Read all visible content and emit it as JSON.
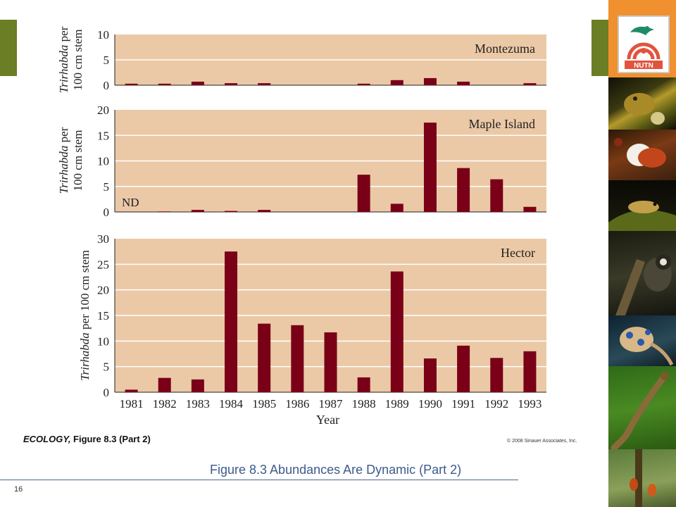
{
  "slide": {
    "book_label_bold": "ECOLOGY,",
    "book_label_rest": " Figure 8.3 (Part 2)",
    "copyright": "© 2008 Sinauer Associates, Inc.",
    "caption": "Figure 8.3  Abundances Are Dynamic (Part 2)",
    "page_number": "16",
    "logo_text": "NUTN",
    "colors": {
      "panel_bg": "#ebc9a6",
      "bar": "#7a0018",
      "caption": "#3d5a8a",
      "tab": "#6b7d25",
      "logo_bg": "#f0902e"
    }
  },
  "sidebar_photos": [
    "frog-photo",
    "frog-vocal-sac-photo",
    "frog-on-leaf-photo",
    "marmoset-photo",
    "octopus-photo",
    "salamander-photo",
    "insects-photo"
  ],
  "chart_data": [
    {
      "type": "bar",
      "title": "Montezuma",
      "ylabel": [
        "Trirhabda per",
        "100 cm stem"
      ],
      "ylim": [
        0,
        10
      ],
      "yticks": [
        0,
        5,
        10
      ],
      "categories": [
        "1981",
        "1982",
        "1983",
        "1984",
        "1985",
        "1986",
        "1987",
        "1988",
        "1989",
        "1990",
        "1991",
        "1992",
        "1993"
      ],
      "values": [
        0.3,
        0.3,
        0.7,
        0.4,
        0.4,
        0,
        0,
        0.3,
        1.0,
        1.4,
        0.7,
        0,
        0.4
      ],
      "annotation": ""
    },
    {
      "type": "bar",
      "title": "Maple Island",
      "ylabel": [
        "Trirhabda per",
        "100 cm stem"
      ],
      "ylim": [
        0,
        20
      ],
      "yticks": [
        0,
        5,
        10,
        15,
        20
      ],
      "categories": [
        "1981",
        "1982",
        "1983",
        "1984",
        "1985",
        "1986",
        "1987",
        "1988",
        "1989",
        "1990",
        "1991",
        "1992",
        "1993"
      ],
      "values": [
        null,
        0.1,
        0.4,
        0.2,
        0.4,
        0,
        0,
        7.3,
        1.6,
        17.5,
        8.6,
        6.4,
        1.0
      ],
      "annotation": "ND"
    },
    {
      "type": "bar",
      "title": "Hector",
      "ylabel": [
        "Trirhabda per 100 cm stem"
      ],
      "ylim": [
        0,
        30
      ],
      "yticks": [
        0,
        5,
        10,
        15,
        20,
        25,
        30
      ],
      "categories": [
        "1981",
        "1982",
        "1983",
        "1984",
        "1985",
        "1986",
        "1987",
        "1988",
        "1989",
        "1990",
        "1991",
        "1992",
        "1993"
      ],
      "values": [
        0.5,
        2.8,
        2.5,
        27.5,
        13.4,
        13.1,
        11.7,
        2.9,
        23.6,
        6.6,
        9.1,
        6.7,
        8.0
      ],
      "xlabel": "Year",
      "annotation": ""
    }
  ]
}
